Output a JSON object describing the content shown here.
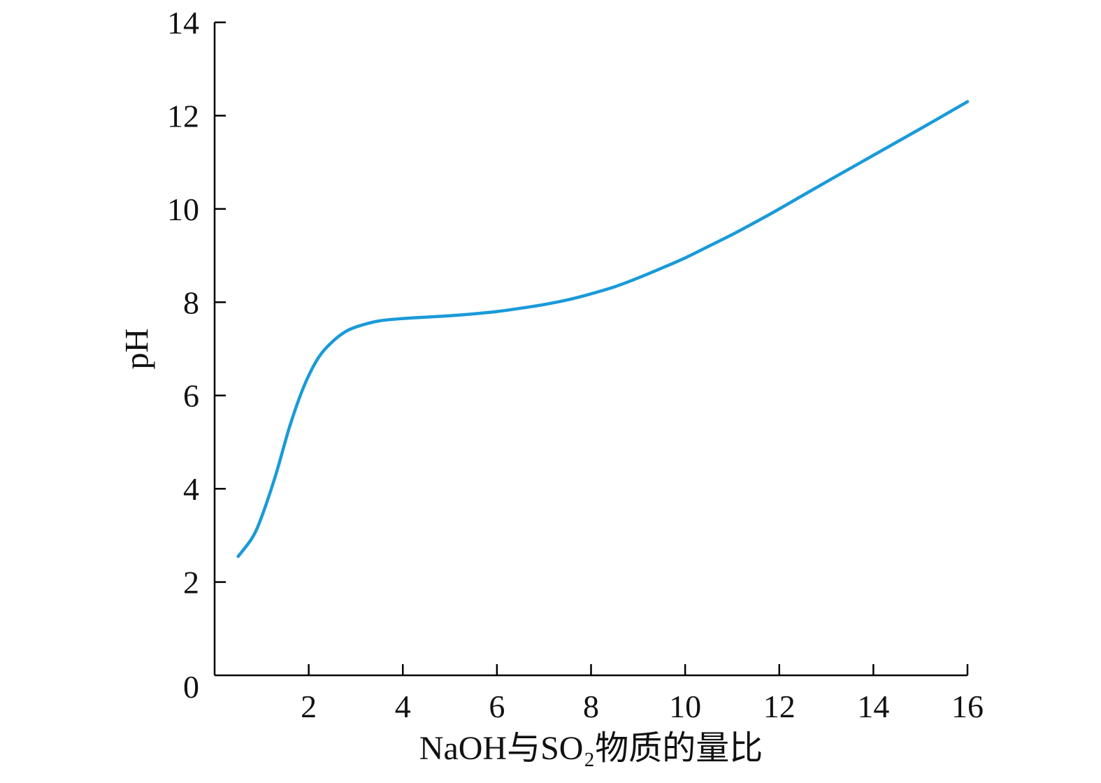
{
  "chart_data": {
    "type": "line",
    "title": "",
    "xlabel": "NaOH与SO₂物质的量比",
    "ylabel": "pH",
    "xlim": [
      0,
      16
    ],
    "ylim": [
      0,
      14
    ],
    "x_ticks": [
      2,
      4,
      6,
      8,
      10,
      12,
      14,
      16
    ],
    "y_ticks": [
      2,
      4,
      6,
      8,
      10,
      12,
      14
    ],
    "origin_label": "0",
    "grid": false,
    "legend": "none",
    "series": [
      {
        "color": "#1a9ad9",
        "x": [
          0.5,
          0.8,
          1.0,
          1.3,
          1.6,
          1.9,
          2.2,
          2.5,
          2.8,
          3.1,
          3.5,
          4.0,
          4.5,
          5.0,
          5.5,
          6.0,
          6.5,
          7.0,
          7.5,
          8.0,
          8.5,
          9.0,
          9.5,
          10.0,
          10.5,
          11.0,
          11.5,
          12.0,
          13.0,
          14.0,
          15.0,
          16.0
        ],
        "y": [
          2.55,
          2.95,
          3.4,
          4.3,
          5.35,
          6.2,
          6.8,
          7.15,
          7.38,
          7.5,
          7.6,
          7.65,
          7.68,
          7.71,
          7.75,
          7.8,
          7.87,
          7.95,
          8.05,
          8.18,
          8.33,
          8.52,
          8.73,
          8.95,
          9.2,
          9.45,
          9.72,
          10.0,
          10.58,
          11.15,
          11.72,
          12.3
        ]
      }
    ]
  }
}
